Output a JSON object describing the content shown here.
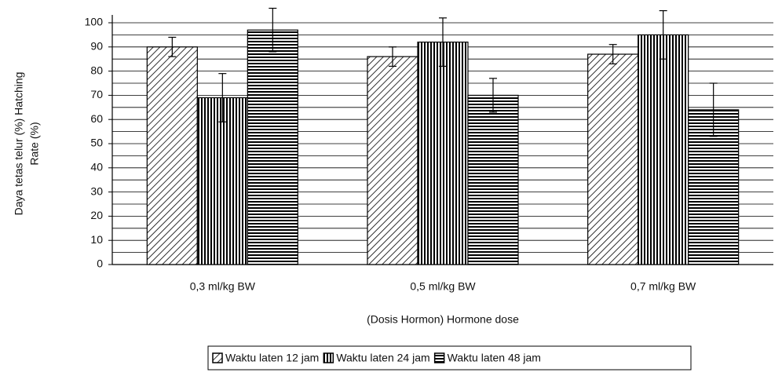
{
  "chart_data": {
    "type": "bar",
    "ylabel": [
      "Daya tetas telur (%) Hatching",
      "Rate (%)"
    ],
    "xlabel": "(Dosis Hormon) Hormone dose",
    "categories": [
      "0,3 ml/kg BW",
      "0,5 ml/kg BW",
      "0,7 ml/kg BW"
    ],
    "series": [
      {
        "name": "Waktu laten 12 jam",
        "color": "#000000",
        "pattern": "diagonal",
        "values": [
          90,
          86,
          87
        ],
        "errors": [
          4,
          4,
          4
        ]
      },
      {
        "name": "Waktu laten 24 jam",
        "color": "#000000",
        "pattern": "vertical",
        "values": [
          69,
          92,
          95
        ],
        "errors": [
          10,
          10,
          10
        ]
      },
      {
        "name": "Waktu laten 48 jam",
        "color": "#000000",
        "pattern": "horizontal",
        "values": [
          97,
          70,
          64
        ],
        "errors": [
          9,
          7,
          11
        ]
      }
    ],
    "ylim": [
      0,
      100
    ],
    "yticks": [
      0,
      10,
      20,
      30,
      40,
      50,
      60,
      70,
      80,
      90,
      100
    ],
    "yminorticks": [
      5,
      15,
      25,
      35,
      45,
      55,
      65,
      75,
      85,
      95
    ],
    "grid": true,
    "legend": "bottom"
  }
}
